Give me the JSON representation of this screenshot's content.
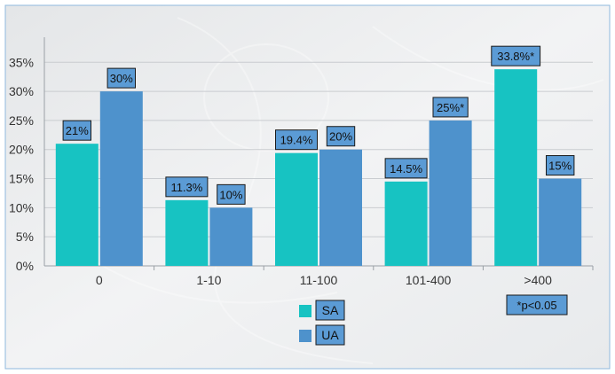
{
  "chart_data": {
    "type": "bar",
    "categories": [
      "0",
      "1-10",
      "11-100",
      "101-400",
      ">400"
    ],
    "series": [
      {
        "name": "SA",
        "values": [
          21,
          11.3,
          19.4,
          14.5,
          33.8
        ],
        "labels": [
          "21%",
          "11.3%",
          "19.4%",
          "14.5%",
          "33.8%*"
        ]
      },
      {
        "name": "UA",
        "values": [
          30,
          10,
          20,
          25,
          15
        ],
        "labels": [
          "30%",
          "10%",
          "20%",
          "25%*",
          "15%"
        ]
      }
    ],
    "yticks": [
      "0%",
      "5%",
      "10%",
      "15%",
      "20%",
      "25%",
      "30%",
      "35%"
    ],
    "ylim": [
      0,
      35
    ],
    "grid": true,
    "legend_position": "bottom-center",
    "annotation": "*p<0.05",
    "colors": {
      "SA": "#17c3c2",
      "UA": "#4e92cc",
      "label_bg": "#5b9bd5",
      "frame": "#8fb8de"
    }
  }
}
